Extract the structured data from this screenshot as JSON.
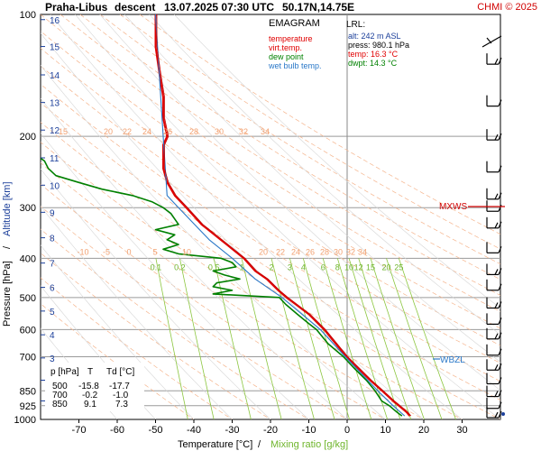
{
  "header": {
    "station": "Praha-Libus",
    "mode": "descent",
    "datetime": "13.07.2025 07:30 UTC",
    "coords": "50.17N,14.75E",
    "copyright": "CHMI © 2025"
  },
  "legend": {
    "title": "EMAGRAM",
    "items": [
      {
        "label": "temperature",
        "color": "#e00000"
      },
      {
        "label": "virt.temp.",
        "color": "#e00000"
      },
      {
        "label": "dew point",
        "color": "#008000"
      },
      {
        "label": "wet bulb temp.",
        "color": "#2a78c8"
      }
    ]
  },
  "lrl": {
    "title": "LRL:",
    "rows": [
      {
        "text": "alt: 242 m ASL",
        "color": "#1b3f9a"
      },
      {
        "text": "press: 980.1 hPa",
        "color": "#000000"
      },
      {
        "text": "temp: 16.3 °C",
        "color": "#e00000"
      },
      {
        "text": "dwpt: 14.3 °C",
        "color": "#008000"
      }
    ]
  },
  "table": {
    "headers": [
      "p [hPa]",
      "T",
      "Td [°C]"
    ],
    "rows": [
      [
        "500",
        "-15.8",
        "-17.7"
      ],
      [
        "700",
        "-0.2",
        "-1.0"
      ],
      [
        "850",
        "9.1",
        "7.3"
      ]
    ]
  },
  "markers": {
    "mxws": "MXWS",
    "wbzl": "WBZL"
  },
  "dry_adiabat_labels": [
    "15",
    "20",
    "22",
    "24",
    "26",
    "28",
    "30",
    "32",
    "34"
  ],
  "dry_adiabat_labels_low": [
    "-10",
    "-5",
    "0",
    "5",
    "10",
    "20",
    "22",
    "24",
    "26",
    "28",
    "30",
    "32",
    "34"
  ],
  "mixing_ratio_labels": [
    "0.1",
    "0.2",
    "0.5",
    "1",
    "2",
    "3",
    "4",
    "6",
    "8",
    "10",
    "12",
    "15",
    "20",
    "25"
  ],
  "chart_data": {
    "type": "line",
    "title": "Praha-Libus descent 13.07.2025 07:30 UTC 50.17N,14.75E",
    "xlabel": "Temperature [°C]",
    "xlabel2": "Mixing ratio [g/kg]",
    "xlabel_sep": "/",
    "ylabel": "Pressure [hPa]",
    "ylabel2": "Altitude [km]",
    "ylabel_sep": "/",
    "xlim": [
      -80,
      40
    ],
    "ylim": [
      1000,
      100
    ],
    "yscale": "log",
    "x_ticks": [
      "-70",
      "-60",
      "-50",
      "-40",
      "-30",
      "-20",
      "-10",
      "0",
      "10",
      "20",
      "30"
    ],
    "y_ticks": [
      "100",
      "200",
      "300",
      "400",
      "500",
      "600",
      "700",
      "850",
      "925",
      "1000"
    ],
    "altitude_ticks": [
      "1",
      "2",
      "3",
      "4",
      "5",
      "6",
      "7",
      "8",
      "9",
      "10",
      "11",
      "12",
      "13",
      "14",
      "15",
      "16"
    ],
    "series": [
      {
        "name": "temperature",
        "color": "#e00000",
        "points": [
          [
            100,
            -50
          ],
          [
            120,
            -50
          ],
          [
            140,
            -49
          ],
          [
            160,
            -48
          ],
          [
            180,
            -48
          ],
          [
            200,
            -47
          ],
          [
            210,
            -48
          ],
          [
            220,
            -48
          ],
          [
            240,
            -48
          ],
          [
            260,
            -47
          ],
          [
            280,
            -45
          ],
          [
            300,
            -42
          ],
          [
            330,
            -38
          ],
          [
            360,
            -33
          ],
          [
            400,
            -27
          ],
          [
            430,
            -24
          ],
          [
            450,
            -21
          ],
          [
            480,
            -18
          ],
          [
            500,
            -15.8
          ],
          [
            550,
            -10
          ],
          [
            600,
            -6
          ],
          [
            650,
            -3
          ],
          [
            700,
            -0.2
          ],
          [
            750,
            3
          ],
          [
            800,
            6
          ],
          [
            850,
            9.1
          ],
          [
            900,
            12
          ],
          [
            925,
            13.5
          ],
          [
            960,
            15.5
          ],
          [
            980,
            16.3
          ]
        ]
      },
      {
        "name": "dew point",
        "color": "#008000",
        "points": [
          [
            220,
            -82
          ],
          [
            230,
            -79
          ],
          [
            240,
            -78
          ],
          [
            250,
            -76
          ],
          [
            260,
            -70
          ],
          [
            270,
            -64
          ],
          [
            280,
            -56
          ],
          [
            290,
            -51
          ],
          [
            300,
            -48
          ],
          [
            310,
            -46
          ],
          [
            320,
            -45
          ],
          [
            330,
            -44
          ],
          [
            340,
            -50
          ],
          [
            350,
            -45
          ],
          [
            360,
            -47
          ],
          [
            370,
            -44
          ],
          [
            380,
            -48
          ],
          [
            390,
            -44
          ],
          [
            400,
            -33
          ],
          [
            410,
            -30
          ],
          [
            420,
            -29
          ],
          [
            430,
            -35
          ],
          [
            440,
            -32
          ],
          [
            450,
            -28
          ],
          [
            460,
            -34
          ],
          [
            470,
            -35
          ],
          [
            480,
            -30
          ],
          [
            490,
            -35
          ],
          [
            500,
            -17.7
          ],
          [
            520,
            -16
          ],
          [
            550,
            -13
          ],
          [
            580,
            -10
          ],
          [
            600,
            -8
          ],
          [
            650,
            -5
          ],
          [
            700,
            -1.0
          ],
          [
            750,
            2
          ],
          [
            800,
            5
          ],
          [
            850,
            7.3
          ],
          [
            900,
            9
          ],
          [
            925,
            11
          ],
          [
            960,
            13
          ],
          [
            980,
            14.3
          ]
        ]
      },
      {
        "name": "wet bulb temp.",
        "color": "#2a78c8",
        "points": [
          [
            100,
            -50
          ],
          [
            200,
            -48
          ],
          [
            280,
            -47
          ],
          [
            300,
            -44
          ],
          [
            360,
            -36
          ],
          [
            400,
            -30
          ],
          [
            450,
            -24
          ],
          [
            500,
            -17
          ],
          [
            600,
            -7
          ],
          [
            700,
            -0.5
          ],
          [
            850,
            8
          ],
          [
            925,
            12
          ],
          [
            980,
            15
          ]
        ]
      }
    ],
    "grid": true
  }
}
